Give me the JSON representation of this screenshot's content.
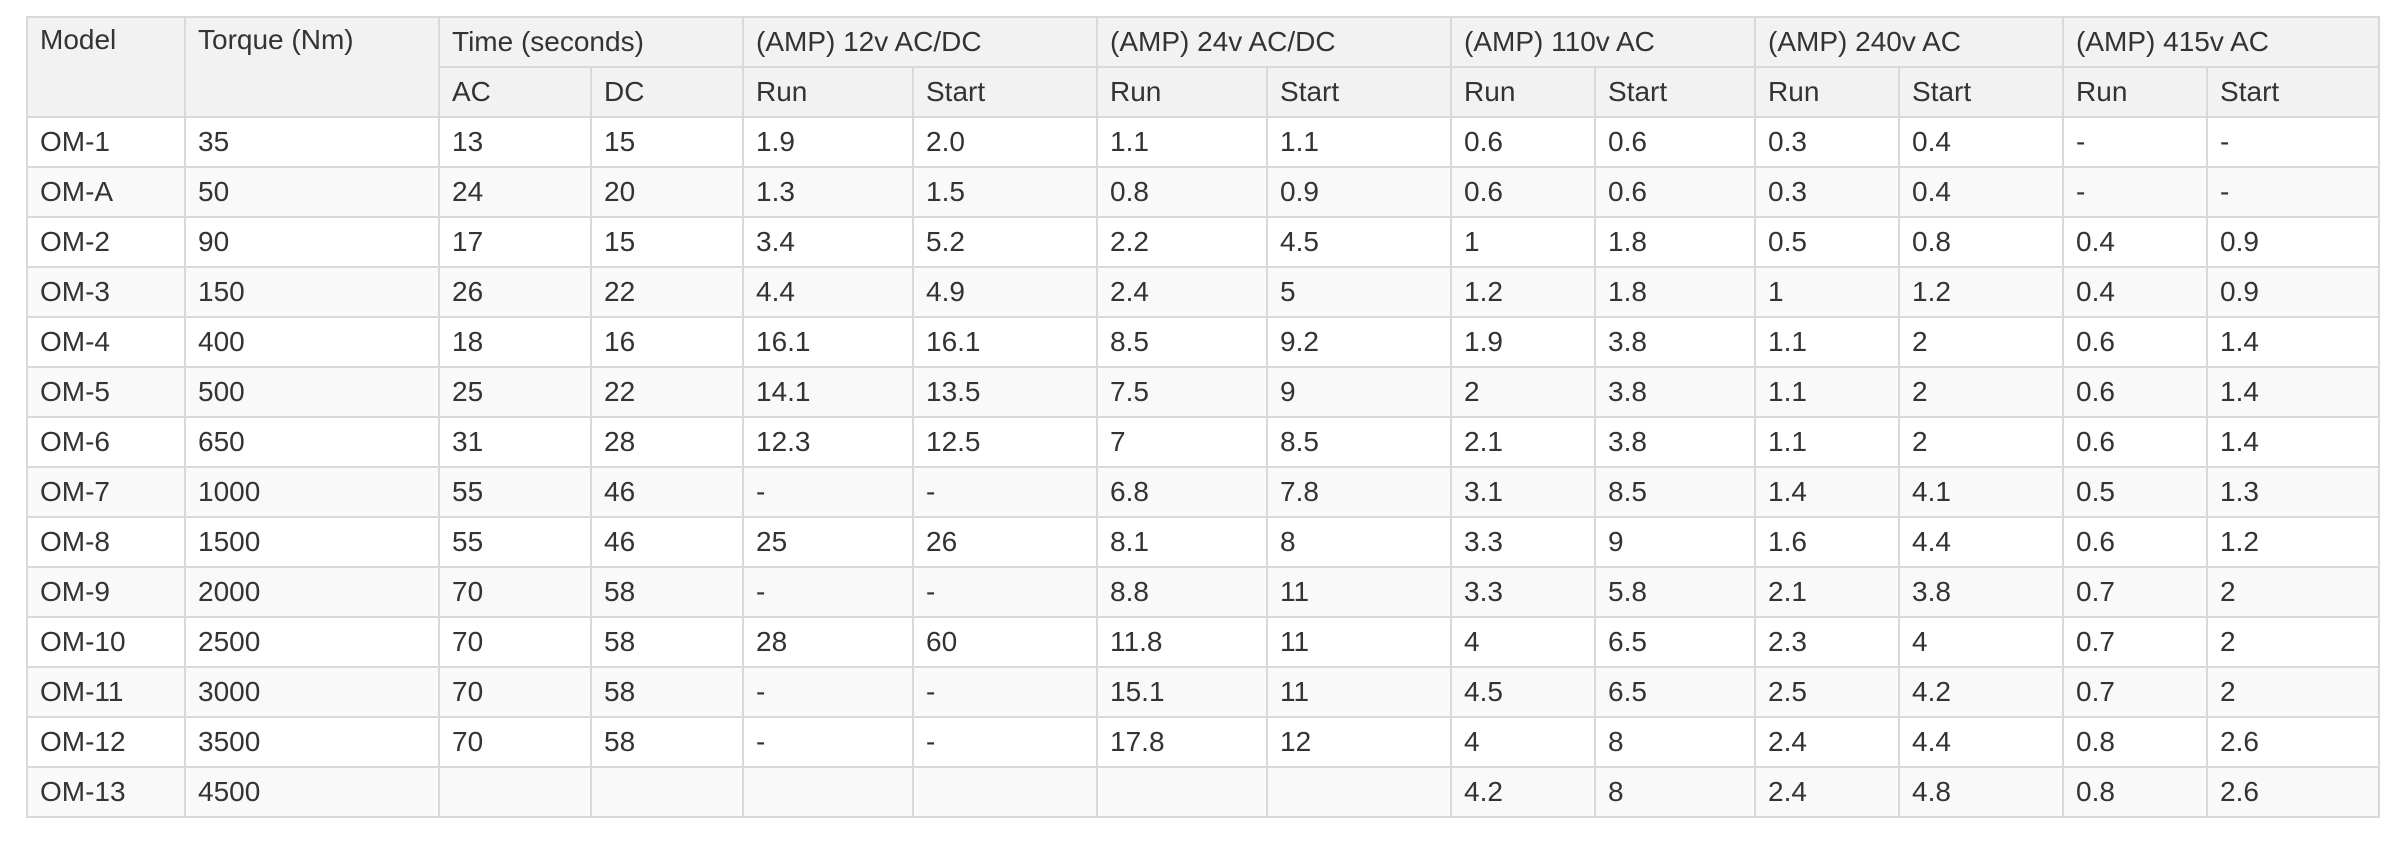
{
  "table": {
    "headers": {
      "model": "Model",
      "torque": "Torque (Nm)",
      "time": "Time (seconds)",
      "groups": [
        "(AMP) 12v AC/DC",
        "(AMP) 24v AC/DC",
        "(AMP) 110v AC",
        "(AMP) 240v AC",
        "(AMP) 415v AC"
      ],
      "time_sub": [
        "AC",
        "DC"
      ],
      "amp_sub": [
        "Run",
        "Start"
      ]
    },
    "rows": [
      [
        "OM-1",
        "35",
        "13",
        "15",
        "1.9",
        "2.0",
        "1.1",
        "1.1",
        "0.6",
        "0.6",
        "0.3",
        "0.4",
        "-",
        "-"
      ],
      [
        "OM-A",
        "50",
        "24",
        "20",
        "1.3",
        "1.5",
        "0.8",
        "0.9",
        "0.6",
        "0.6",
        "0.3",
        "0.4",
        "-",
        "-"
      ],
      [
        "OM-2",
        "90",
        "17",
        "15",
        "3.4",
        "5.2",
        "2.2",
        "4.5",
        "1",
        "1.8",
        "0.5",
        "0.8",
        "0.4",
        "0.9"
      ],
      [
        "OM-3",
        "150",
        "26",
        "22",
        "4.4",
        "4.9",
        "2.4",
        "5",
        "1.2",
        "1.8",
        "1",
        "1.2",
        "0.4",
        "0.9"
      ],
      [
        "OM-4",
        "400",
        "18",
        "16",
        "16.1",
        "16.1",
        "8.5",
        "9.2",
        "1.9",
        "3.8",
        "1.1",
        "2",
        "0.6",
        "1.4"
      ],
      [
        "OM-5",
        "500",
        "25",
        "22",
        "14.1",
        "13.5",
        "7.5",
        "9",
        "2",
        "3.8",
        "1.1",
        "2",
        "0.6",
        "1.4"
      ],
      [
        "OM-6",
        "650",
        "31",
        "28",
        "12.3",
        "12.5",
        "7",
        "8.5",
        "2.1",
        "3.8",
        "1.1",
        "2",
        "0.6",
        "1.4"
      ],
      [
        "OM-7",
        "1000",
        "55",
        "46",
        "-",
        "-",
        "6.8",
        "7.8",
        "3.1",
        "8.5",
        "1.4",
        "4.1",
        "0.5",
        "1.3"
      ],
      [
        "OM-8",
        "1500",
        "55",
        "46",
        "25",
        "26",
        "8.1",
        "8",
        "3.3",
        "9",
        "1.6",
        "4.4",
        "0.6",
        "1.2"
      ],
      [
        "OM-9",
        "2000",
        "70",
        "58",
        "-",
        "-",
        "8.8",
        "11",
        "3.3",
        "5.8",
        "2.1",
        "3.8",
        "0.7",
        "2"
      ],
      [
        "OM-10",
        "2500",
        "70",
        "58",
        "28",
        "60",
        "11.8",
        "11",
        "4",
        "6.5",
        "2.3",
        "4",
        "0.7",
        "2"
      ],
      [
        "OM-11",
        "3000",
        "70",
        "58",
        "-",
        "-",
        "15.1",
        "11",
        "4.5",
        "6.5",
        "2.5",
        "4.2",
        "0.7",
        "2"
      ],
      [
        "OM-12",
        "3500",
        "70",
        "58",
        "-",
        "-",
        "17.8",
        "12",
        "4",
        "8",
        "2.4",
        "4.4",
        "0.8",
        "2.6"
      ],
      [
        "OM-13",
        "4500",
        "",
        "",
        "",
        "",
        "",
        "",
        "4.2",
        "8",
        "2.4",
        "4.8",
        "0.8",
        "2.6"
      ]
    ]
  }
}
